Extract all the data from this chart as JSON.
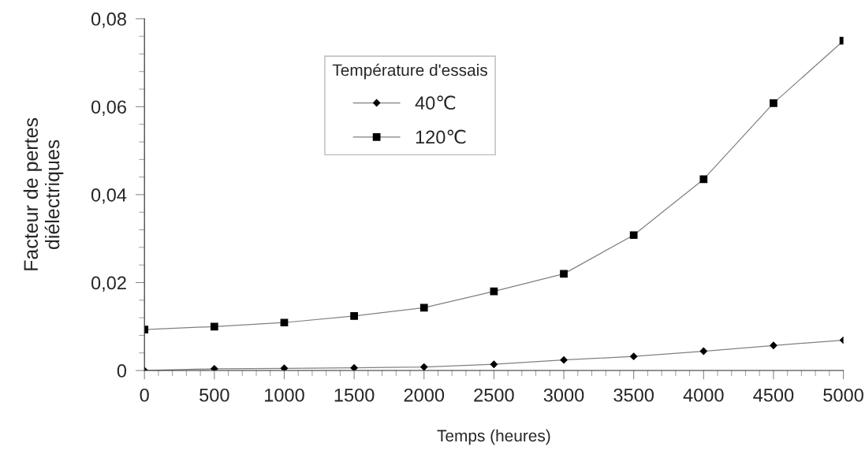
{
  "chart_data": {
    "type": "line",
    "xlabel": "Temps (heures)",
    "ylabel": "Facteur de pertes\ndiélectriques",
    "legend_title": "Température d'essais",
    "legend": "top",
    "x": [
      0,
      500,
      1000,
      1500,
      2000,
      2500,
      3000,
      3500,
      4000,
      4500,
      5000
    ],
    "series": [
      {
        "name": "40℃",
        "color": "#000000",
        "marker": "diamond",
        "values": [
          0.0,
          0.0004,
          0.0005,
          0.0006,
          0.0008,
          0.0014,
          0.0024,
          0.0032,
          0.0044,
          0.0057,
          0.0069
        ]
      },
      {
        "name": "120℃",
        "color": "#000000",
        "marker": "square",
        "values": [
          0.0093,
          0.01,
          0.0109,
          0.0124,
          0.0143,
          0.018,
          0.022,
          0.0308,
          0.0435,
          0.0608,
          0.075
        ]
      }
    ],
    "xlim": [
      0,
      5000
    ],
    "xticks": [
      0,
      500,
      1000,
      1500,
      2000,
      2500,
      3000,
      3500,
      4000,
      4500,
      5000
    ],
    "ylim": [
      0,
      0.08
    ],
    "yticks": [
      {
        "value": 0,
        "label": "0"
      },
      {
        "value": 0.02,
        "label": "0,02"
      },
      {
        "value": 0.04,
        "label": "0,04"
      },
      {
        "value": 0.06,
        "label": "0,06"
      },
      {
        "value": 0.08,
        "label": "0,08"
      }
    ],
    "grid": false
  }
}
